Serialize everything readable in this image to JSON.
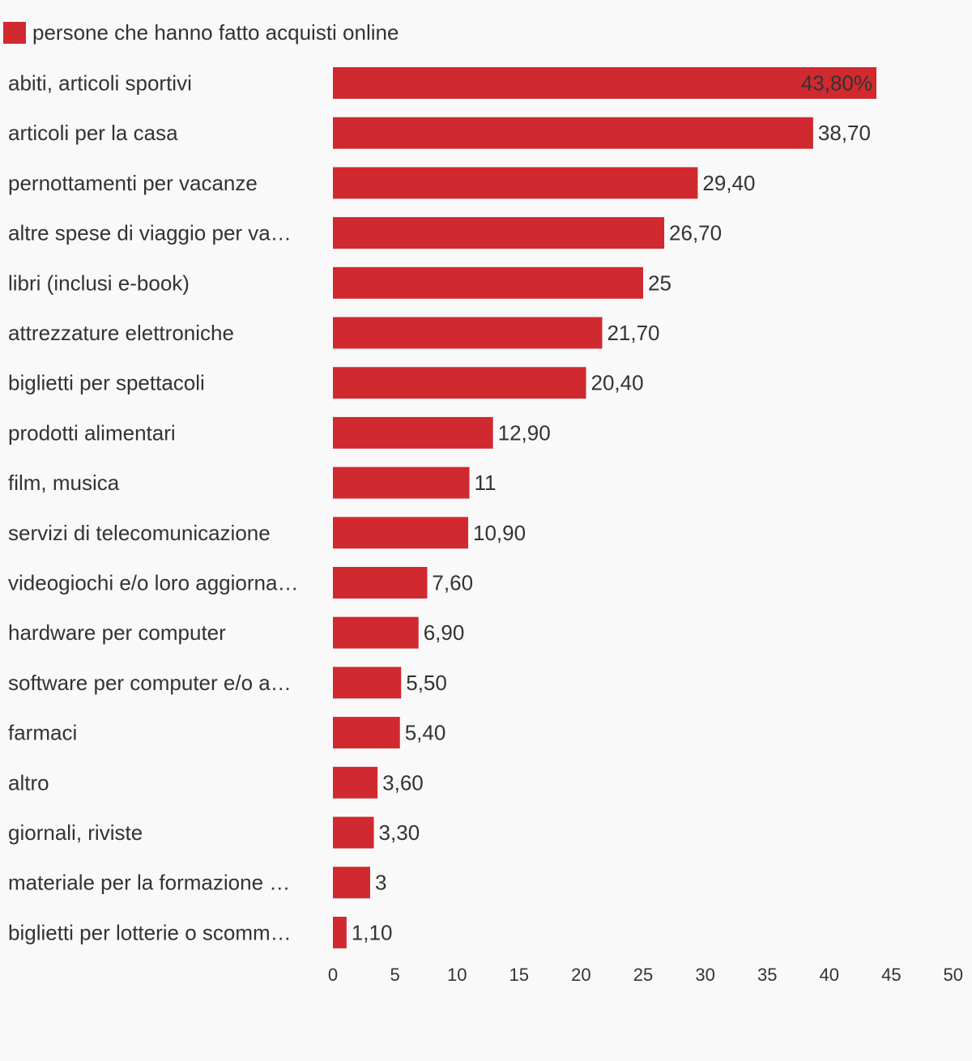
{
  "colors": {
    "bar": "#d0292f",
    "text": "#333333",
    "background": "#f9f9f9"
  },
  "legend": {
    "label": "persone che hanno fatto acquisti online"
  },
  "chart_data": {
    "type": "bar",
    "orientation": "horizontal",
    "title": "",
    "xlabel": "",
    "ylabel": "",
    "grid": false,
    "legend_position": "top-left",
    "xlim": [
      0,
      50
    ],
    "x_ticks": [
      0,
      5,
      10,
      15,
      20,
      25,
      30,
      35,
      40,
      45,
      50
    ],
    "categories": [
      "abiti, articoli sportivi",
      "articoli per la casa",
      "pernottamenti per vacanze",
      "altre spese di viaggio per va…",
      "libri (inclusi e-book)",
      "attrezzature elettroniche",
      "biglietti per spettacoli",
      "prodotti alimentari",
      "film, musica",
      "servizi di telecomunicazione",
      "videogiochi e/o loro aggiorna…",
      "hardware per computer",
      "software per computer e/o a…",
      "farmaci",
      "altro",
      "giornali, riviste",
      "materiale per la formazione …",
      "biglietti per lotterie o scomm…"
    ],
    "series": [
      {
        "name": "persone che hanno fatto acquisti online",
        "values": [
          43.8,
          38.7,
          29.4,
          26.7,
          25,
          21.7,
          20.4,
          12.9,
          11,
          10.9,
          7.6,
          6.9,
          5.5,
          5.4,
          3.6,
          3.3,
          3,
          1.1
        ]
      }
    ],
    "value_labels": [
      "43,80%",
      "38,70",
      "29,40",
      "26,70",
      "25",
      "21,70",
      "20,40",
      "12,90",
      "11",
      "10,90",
      "7,60",
      "6,90",
      "5,50",
      "5,40",
      "3,60",
      "3,30",
      "3",
      "1,10"
    ]
  }
}
